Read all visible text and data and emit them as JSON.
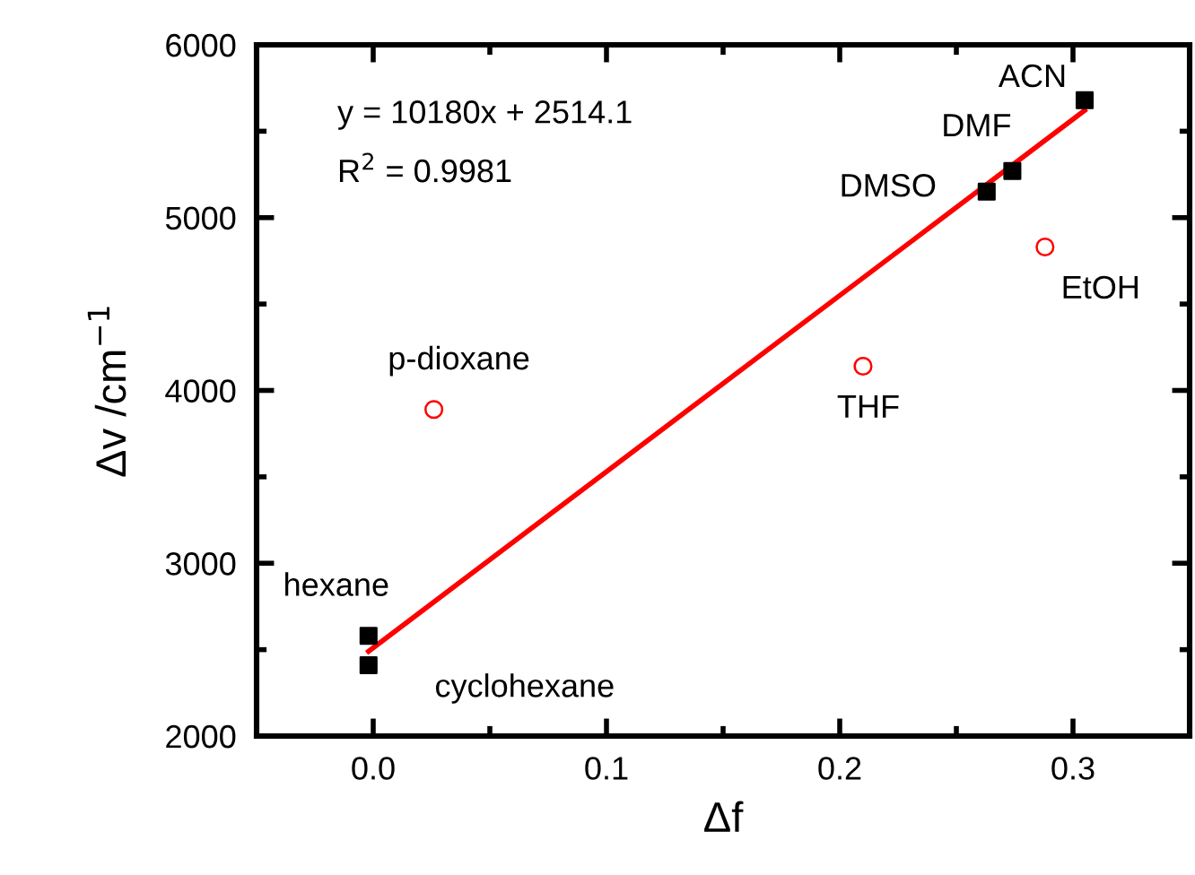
{
  "chart_data": {
    "type": "scatter",
    "xlabel": "Δf",
    "ylabel": "Δv /cm$^{−1}$",
    "xlim": [
      -0.05,
      0.35
    ],
    "ylim": [
      2000,
      6000
    ],
    "xticks": [
      {
        "value": -0.05,
        "label": null
      },
      {
        "value": 0.0,
        "label": "0.0"
      },
      {
        "value": 0.05,
        "label": null
      },
      {
        "value": 0.1,
        "label": "0.1"
      },
      {
        "value": 0.15,
        "label": null
      },
      {
        "value": 0.2,
        "label": "0.2"
      },
      {
        "value": 0.25,
        "label": null
      },
      {
        "value": 0.3,
        "label": "0.3"
      },
      {
        "value": 0.35,
        "label": null
      }
    ],
    "yticks": [
      2000,
      {
        "value": 2500,
        "label": null
      },
      3000,
      {
        "value": 3500,
        "label": null
      },
      4000,
      {
        "value": 4500,
        "label": null
      },
      5000,
      {
        "value": 5500,
        "label": null
      },
      6000
    ],
    "grid": false,
    "series": [
      {
        "marker": "square",
        "color": "#000000",
        "x": [
          -0.002,
          -0.002,
          0.263,
          0.274,
          0.305
        ],
        "values": [
          2580,
          2410,
          5150,
          5270,
          5680
        ]
      },
      {
        "marker": "circle",
        "color": "#ff0000",
        "x": [
          0.026,
          0.21,
          0.288
        ],
        "values": [
          3890,
          4140,
          4830
        ]
      },
      {
        "type": "line",
        "color": "#ff0000",
        "x": [
          -0.002,
          0.305
        ],
        "values": [
          2490,
          5620
        ]
      }
    ],
    "annotations": [
      "y = 10180x + 2514.1",
      "R$^{2}$ = 0.9981",
      {
        "text": "ACN",
        "x": 0.305,
        "y": 5680
      },
      {
        "text": "DMF",
        "x": 0.274,
        "y": 5270
      },
      {
        "text": "DMSO",
        "x": 0.263,
        "y": 5150
      },
      {
        "text": "EtOH",
        "x": 0.288,
        "y": 4830
      },
      {
        "text": "THF",
        "x": 0.21,
        "y": 4140
      },
      {
        "text": "p-dioxane",
        "x": 0.026,
        "y": 3890
      },
      {
        "text": "hexane",
        "x": -0.002,
        "y": 2580
      },
      {
        "text": "cyclohexane",
        "x": -0.002,
        "y": 2410
      }
    ]
  }
}
